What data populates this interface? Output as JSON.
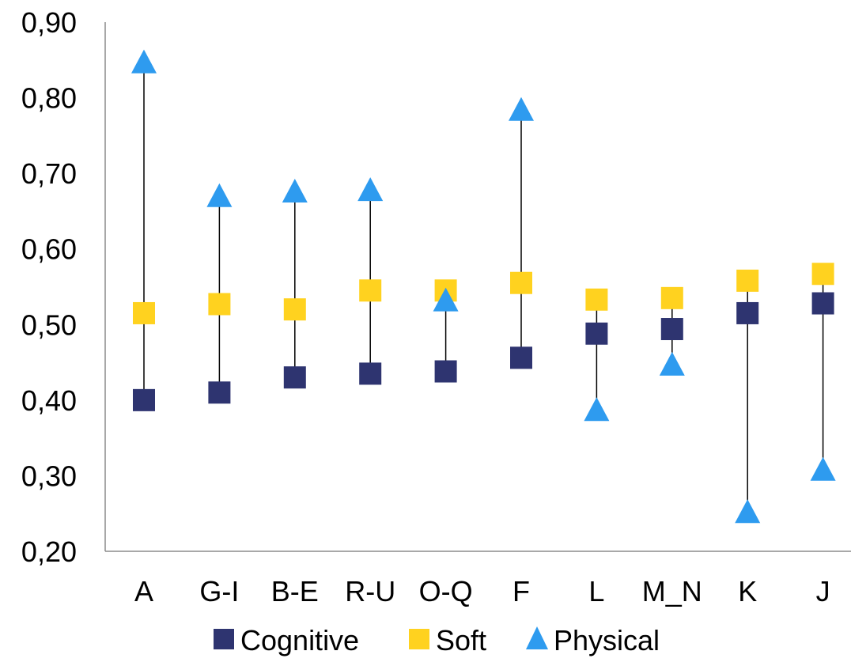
{
  "chart_data": {
    "type": "scatter",
    "title": "",
    "xlabel": "",
    "ylabel": "",
    "categories": [
      "A",
      "G-I",
      "B-E",
      "R-U",
      "O-Q",
      "F",
      "L",
      "M_N",
      "K",
      "J"
    ],
    "ylim": [
      0.2,
      0.9
    ],
    "yticks": [
      "0,20",
      "0,30",
      "0,40",
      "0,50",
      "0,60",
      "0,70",
      "0,80",
      "0,90"
    ],
    "yticks_values": [
      0.2,
      0.3,
      0.4,
      0.5,
      0.6,
      0.7,
      0.8,
      0.9
    ],
    "grid": false,
    "legend_position": "bottom",
    "range_lines": true,
    "series": [
      {
        "name": "Cognitive",
        "marker": "square",
        "color": "#2E3470",
        "values": [
          0.4,
          0.41,
          0.43,
          0.435,
          0.438,
          0.456,
          0.488,
          0.494,
          0.515,
          0.528
        ]
      },
      {
        "name": "Soft",
        "marker": "square",
        "color": "#FFD21F",
        "values": [
          0.515,
          0.527,
          0.52,
          0.545,
          0.545,
          0.555,
          0.533,
          0.535,
          0.558,
          0.567
        ]
      },
      {
        "name": "Physical",
        "marker": "triangle",
        "color": "#2E9BEF",
        "values": [
          0.845,
          0.668,
          0.674,
          0.676,
          0.53,
          0.782,
          0.385,
          0.445,
          0.25,
          0.306
        ]
      }
    ]
  }
}
